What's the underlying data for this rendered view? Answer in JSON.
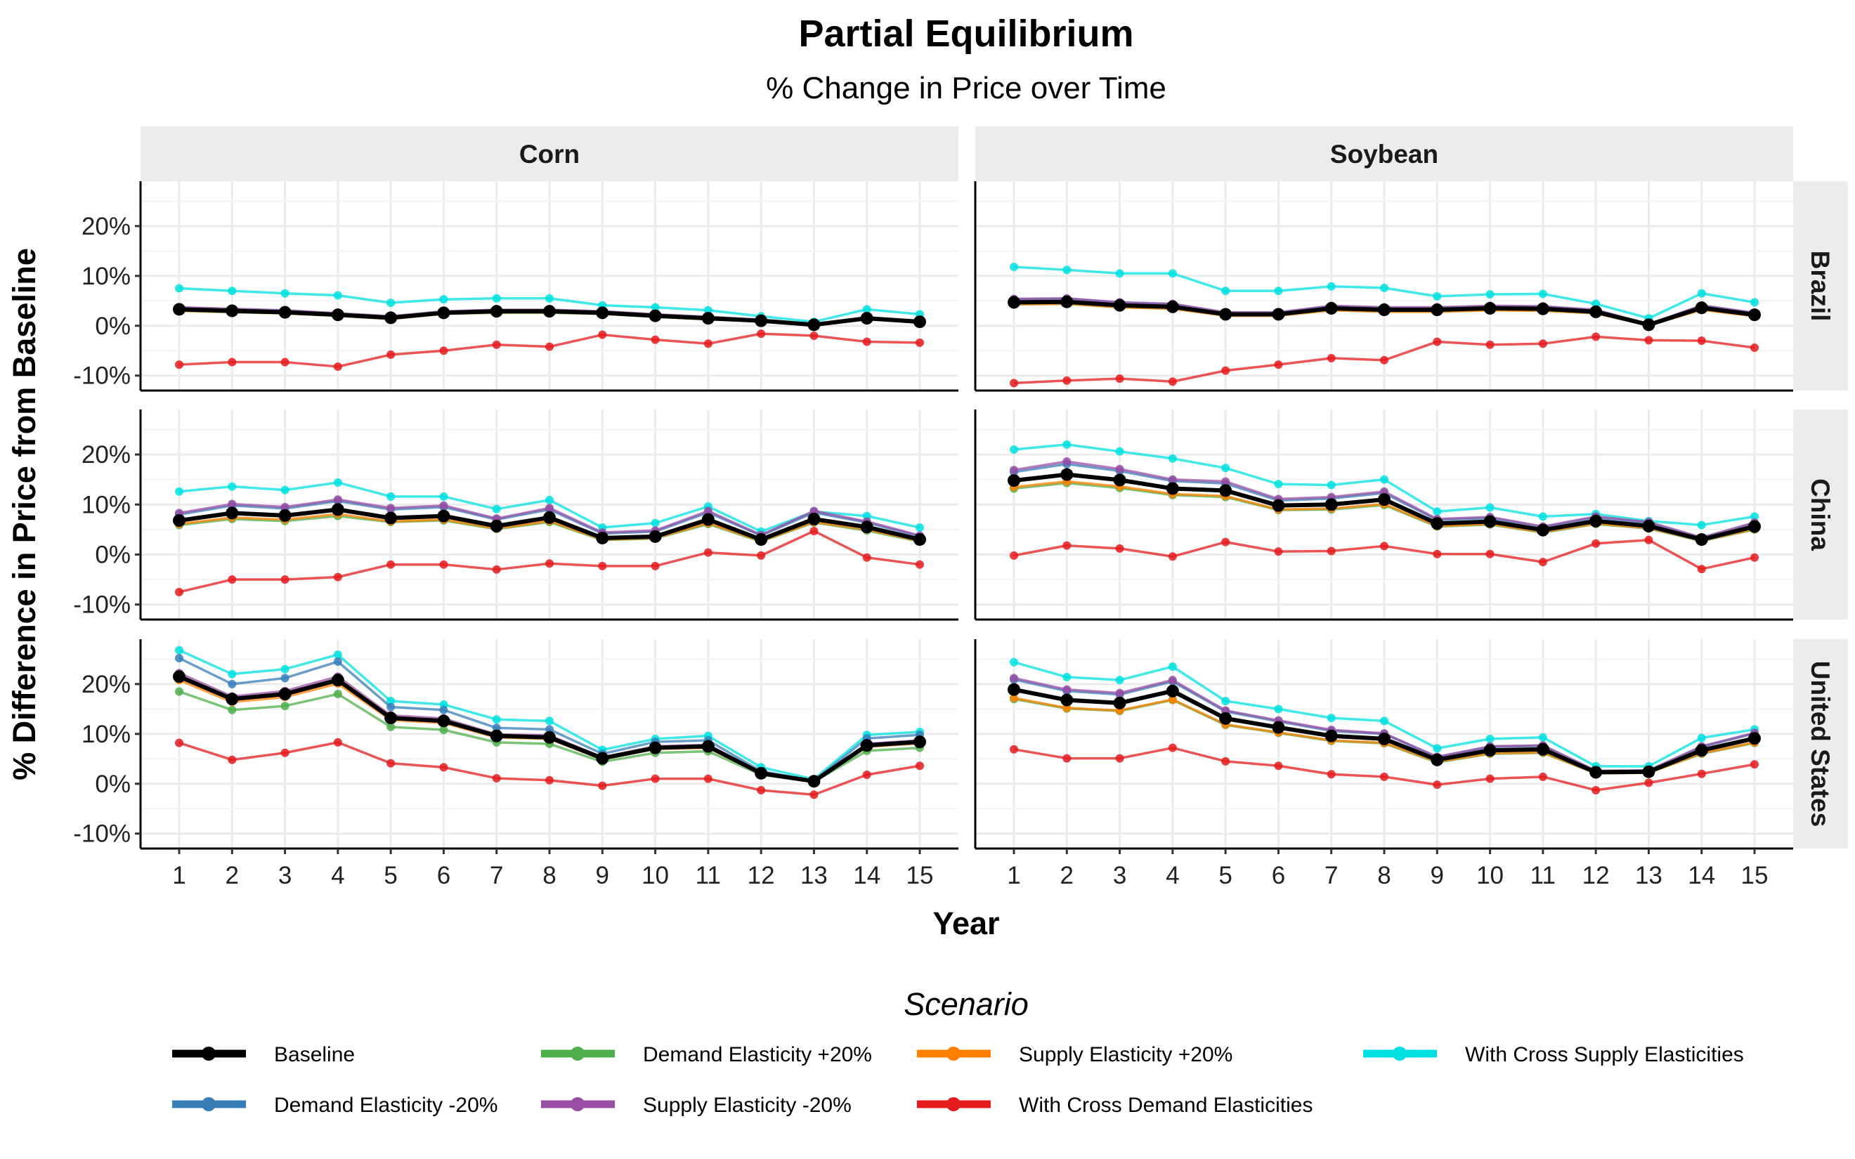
{
  "title": "Partial Equilibrium",
  "subtitle": "% Change in Price over Time",
  "chart_data": {
    "type": "line",
    "title": "Partial Equilibrium",
    "subtitle": "% Change in Price over Time",
    "xlabel": "Year",
    "ylabel": "% Difference in Price from Baseline",
    "x": [
      1,
      2,
      3,
      4,
      5,
      6,
      7,
      8,
      9,
      10,
      11,
      12,
      13,
      14,
      15
    ],
    "x_ticks": [
      "1",
      "2",
      "3",
      "4",
      "5",
      "6",
      "7",
      "8",
      "9",
      "10",
      "11",
      "12",
      "13",
      "14",
      "15"
    ],
    "ylim": [
      -13,
      29
    ],
    "y_ticks": [
      -10,
      0,
      10,
      20
    ],
    "y_tick_labels": [
      "-10%",
      "0%",
      "10%",
      "20%"
    ],
    "columns": [
      "Corn",
      "Soybean"
    ],
    "rows": [
      "Brazil",
      "China",
      "United States"
    ],
    "grid": true,
    "legend_title": "Scenario",
    "legend_position": "bottom",
    "legend": [
      {
        "name": "Baseline",
        "color": "#000000"
      },
      {
        "name": "Demand Elasticity -20%",
        "color": "#377eb8"
      },
      {
        "name": "Demand Elasticity +20%",
        "color": "#4daf4a"
      },
      {
        "name": "Supply Elasticity -20%",
        "color": "#984ea3"
      },
      {
        "name": "Supply Elasticity +20%",
        "color": "#ff7f00"
      },
      {
        "name": "With Cross Demand Elasticities",
        "color": "#e41a1c"
      },
      {
        "name": "With Cross Supply Elasticities",
        "color": "#00e0e0"
      }
    ],
    "panels": [
      {
        "column": "Corn",
        "row": "Brazil",
        "series": [
          {
            "name": "Baseline",
            "values": [
              3.3,
              3.0,
              2.7,
              2.2,
              1.6,
              2.6,
              2.9,
              2.9,
              2.6,
              2.0,
              1.5,
              1.0,
              0.2,
              1.5,
              0.8
            ]
          },
          {
            "name": "Demand Elasticity -20%",
            "values": [
              3.6,
              3.3,
              3.0,
              2.4,
              1.8,
              2.8,
              3.1,
              3.1,
              2.8,
              2.2,
              1.7,
              1.1,
              0.3,
              1.6,
              0.9
            ]
          },
          {
            "name": "Demand Elasticity +20%",
            "values": [
              3.0,
              2.7,
              2.5,
              2.0,
              1.4,
              2.4,
              2.6,
              2.6,
              2.4,
              1.8,
              1.3,
              0.9,
              0.1,
              1.3,
              0.7
            ]
          },
          {
            "name": "Supply Elasticity -20%",
            "values": [
              3.7,
              3.4,
              3.1,
              2.5,
              1.9,
              2.9,
              3.2,
              3.2,
              2.9,
              2.3,
              1.8,
              1.2,
              0.3,
              1.7,
              1.0
            ]
          },
          {
            "name": "Supply Elasticity +20%",
            "values": [
              3.0,
              2.8,
              2.5,
              2.0,
              1.4,
              2.4,
              2.7,
              2.7,
              2.4,
              1.8,
              1.3,
              0.9,
              0.1,
              1.3,
              0.7
            ]
          },
          {
            "name": "With Cross Demand Elasticities",
            "values": [
              -7.8,
              -7.3,
              -7.3,
              -8.2,
              -5.8,
              -5.0,
              -3.8,
              -4.2,
              -1.8,
              -2.8,
              -3.6,
              -1.6,
              -2.0,
              -3.2,
              -3.4
            ]
          },
          {
            "name": "With Cross Supply Elasticities",
            "values": [
              7.5,
              7.0,
              6.5,
              6.1,
              4.6,
              5.3,
              5.5,
              5.5,
              4.1,
              3.7,
              3.1,
              1.9,
              0.8,
              3.3,
              2.3
            ]
          }
        ]
      },
      {
        "column": "Soybean",
        "row": "Brazil",
        "series": [
          {
            "name": "Baseline",
            "values": [
              4.7,
              4.8,
              4.1,
              3.8,
              2.3,
              2.3,
              3.5,
              3.2,
              3.2,
              3.5,
              3.4,
              2.8,
              0.2,
              3.6,
              2.2
            ]
          },
          {
            "name": "Demand Elasticity -20%",
            "values": [
              5.3,
              5.4,
              4.6,
              4.3,
              2.6,
              2.6,
              3.9,
              3.6,
              3.6,
              3.9,
              3.8,
              3.1,
              0.3,
              4.0,
              2.5
            ]
          },
          {
            "name": "Demand Elasticity +20%",
            "values": [
              4.3,
              4.4,
              3.7,
              3.5,
              2.1,
              2.1,
              3.2,
              2.9,
              2.9,
              3.2,
              3.1,
              2.5,
              0.1,
              3.3,
              2.0
            ]
          },
          {
            "name": "Supply Elasticity -20%",
            "values": [
              5.4,
              5.5,
              4.7,
              4.4,
              2.7,
              2.7,
              4.0,
              3.7,
              3.7,
              4.0,
              3.9,
              3.2,
              0.3,
              4.1,
              2.6
            ]
          },
          {
            "name": "Supply Elasticity +20%",
            "values": [
              4.3,
              4.4,
              3.7,
              3.4,
              2.0,
              2.0,
              3.1,
              2.8,
              2.8,
              3.1,
              3.0,
              2.5,
              0.1,
              3.2,
              1.9
            ]
          },
          {
            "name": "With Cross Demand Elasticities",
            "values": [
              -11.5,
              -11.0,
              -10.6,
              -11.2,
              -9.0,
              -7.8,
              -6.5,
              -6.9,
              -3.2,
              -3.8,
              -3.6,
              -2.2,
              -2.9,
              -3.0,
              -4.4
            ]
          },
          {
            "name": "With Cross Supply Elasticities",
            "values": [
              11.8,
              11.2,
              10.5,
              10.5,
              7.0,
              7.0,
              7.9,
              7.6,
              5.9,
              6.3,
              6.4,
              4.4,
              1.5,
              6.5,
              4.7
            ]
          }
        ]
      },
      {
        "column": "Corn",
        "row": "China",
        "series": [
          {
            "name": "Baseline",
            "values": [
              6.8,
              8.3,
              7.8,
              9.0,
              7.3,
              7.7,
              5.7,
              7.4,
              3.3,
              3.6,
              7.0,
              3.0,
              7.1,
              5.5,
              3.0
            ]
          },
          {
            "name": "Demand Elasticity -20%",
            "values": [
              8.0,
              9.8,
              9.2,
              10.7,
              9.0,
              9.5,
              7.0,
              9.0,
              4.2,
              4.6,
              8.4,
              3.8,
              8.4,
              6.4,
              3.6
            ]
          },
          {
            "name": "Demand Elasticity +20%",
            "values": [
              5.9,
              7.1,
              6.7,
              7.7,
              6.5,
              6.8,
              5.1,
              6.5,
              2.9,
              3.2,
              6.1,
              2.6,
              6.4,
              4.8,
              2.6
            ]
          },
          {
            "name": "Supply Elasticity -20%",
            "values": [
              8.3,
              10.1,
              9.5,
              11.0,
              9.3,
              9.8,
              7.2,
              9.3,
              4.4,
              4.8,
              8.7,
              3.9,
              8.7,
              6.6,
              3.8
            ]
          },
          {
            "name": "Supply Elasticity +20%",
            "values": [
              6.1,
              7.4,
              7.0,
              8.1,
              6.6,
              7.0,
              5.2,
              6.7,
              3.0,
              3.3,
              6.3,
              2.7,
              6.5,
              5.0,
              2.7
            ]
          },
          {
            "name": "With Cross Demand Elasticities",
            "values": [
              -7.5,
              -5.0,
              -5.0,
              -4.5,
              -2.0,
              -2.0,
              -3.0,
              -1.8,
              -2.3,
              -2.3,
              0.4,
              -0.2,
              4.7,
              -0.6,
              -2.0
            ]
          },
          {
            "name": "With Cross Supply Elasticities",
            "values": [
              12.6,
              13.6,
              12.9,
              14.4,
              11.6,
              11.6,
              9.1,
              10.9,
              5.4,
              6.3,
              9.6,
              4.6,
              8.6,
              7.7,
              5.4
            ]
          }
        ]
      },
      {
        "column": "Soybean",
        "row": "China",
        "series": [
          {
            "name": "Baseline",
            "values": [
              14.8,
              16.0,
              14.9,
              13.2,
              12.8,
              9.8,
              10.0,
              11.0,
              6.2,
              6.6,
              4.9,
              6.7,
              5.7,
              3.0,
              5.6
            ]
          },
          {
            "name": "Demand Elasticity -20%",
            "values": [
              16.5,
              18.1,
              16.7,
              14.7,
              14.2,
              10.8,
              11.2,
              12.3,
              6.9,
              7.3,
              5.4,
              7.4,
              6.3,
              3.3,
              6.2
            ]
          },
          {
            "name": "Demand Elasticity +20%",
            "values": [
              13.2,
              14.3,
              13.3,
              11.9,
              11.5,
              8.9,
              9.0,
              9.9,
              5.6,
              6.0,
              4.4,
              6.1,
              5.2,
              2.7,
              5.0
            ]
          },
          {
            "name": "Supply Elasticity -20%",
            "values": [
              16.9,
              18.6,
              17.1,
              15.0,
              14.6,
              11.1,
              11.5,
              12.6,
              7.1,
              7.5,
              5.6,
              7.6,
              6.5,
              3.4,
              6.4
            ]
          },
          {
            "name": "Supply Elasticity +20%",
            "values": [
              13.5,
              14.6,
              13.6,
              12.1,
              11.7,
              9.0,
              9.2,
              10.1,
              5.7,
              6.1,
              4.5,
              6.2,
              5.3,
              2.8,
              5.1
            ]
          },
          {
            "name": "With Cross Demand Elasticities",
            "values": [
              -0.2,
              1.8,
              1.2,
              -0.4,
              2.5,
              0.6,
              0.7,
              1.7,
              0.1,
              0.1,
              -1.5,
              2.2,
              2.9,
              -2.9,
              -0.6
            ]
          },
          {
            "name": "With Cross Supply Elasticities",
            "values": [
              21.0,
              22.0,
              20.6,
              19.2,
              17.3,
              14.1,
              13.9,
              15.0,
              8.6,
              9.4,
              7.6,
              8.1,
              6.7,
              5.9,
              7.6
            ]
          }
        ]
      },
      {
        "column": "Corn",
        "row": "United States",
        "series": [
          {
            "name": "Baseline",
            "values": [
              21.5,
              17.0,
              18.0,
              20.8,
              13.2,
              12.6,
              9.6,
              9.3,
              5.1,
              7.2,
              7.5,
              2.1,
              0.5,
              7.7,
              8.4
            ]
          },
          {
            "name": "Demand Elasticity -20%",
            "values": [
              25.2,
              20.0,
              21.2,
              24.5,
              15.4,
              14.8,
              11.2,
              10.9,
              6.0,
              8.4,
              8.7,
              2.5,
              0.6,
              9.1,
              9.8
            ]
          },
          {
            "name": "Demand Elasticity +20%",
            "values": [
              18.5,
              14.8,
              15.6,
              18.0,
              11.4,
              10.8,
              8.3,
              8.0,
              4.4,
              6.2,
              6.5,
              1.8,
              0.4,
              6.6,
              7.2
            ]
          },
          {
            "name": "Supply Elasticity -20%",
            "values": [
              22.2,
              17.5,
              18.6,
              21.5,
              13.7,
              13.1,
              9.9,
              9.7,
              5.3,
              7.5,
              7.8,
              2.2,
              0.5,
              8.0,
              8.7
            ]
          },
          {
            "name": "Supply Elasticity +20%",
            "values": [
              20.8,
              16.4,
              17.4,
              20.1,
              12.8,
              12.2,
              9.3,
              9.0,
              4.9,
              7.0,
              7.2,
              2.0,
              0.5,
              7.4,
              8.1
            ]
          },
          {
            "name": "With Cross Demand Elasticities",
            "values": [
              8.2,
              4.8,
              6.2,
              8.3,
              4.1,
              3.3,
              1.1,
              0.7,
              -0.4,
              1.0,
              1.0,
              -1.3,
              -2.2,
              1.8,
              3.6
            ]
          },
          {
            "name": "With Cross Supply Elasticities",
            "values": [
              26.8,
              22.0,
              23.0,
              25.9,
              16.6,
              15.9,
              12.9,
              12.6,
              6.8,
              9.0,
              9.6,
              3.3,
              0.9,
              9.8,
              10.4
            ]
          }
        ]
      },
      {
        "column": "Soybean",
        "row": "United States",
        "series": [
          {
            "name": "Baseline",
            "values": [
              18.9,
              16.8,
              16.2,
              18.6,
              13.1,
              11.3,
              9.6,
              9.0,
              4.8,
              6.7,
              6.9,
              2.3,
              2.4,
              6.7,
              9.1
            ]
          },
          {
            "name": "Demand Elasticity -20%",
            "values": [
              20.9,
              18.6,
              17.9,
              20.5,
              14.5,
              12.5,
              10.6,
              10.0,
              5.3,
              7.4,
              7.6,
              2.5,
              2.6,
              7.4,
              10.1
            ]
          },
          {
            "name": "Demand Elasticity +20%",
            "values": [
              17.0,
              15.1,
              14.6,
              16.8,
              11.8,
              10.2,
              8.6,
              8.1,
              4.3,
              6.0,
              6.2,
              2.1,
              2.2,
              6.0,
              8.2
            ]
          },
          {
            "name": "Supply Elasticity -20%",
            "values": [
              21.2,
              18.9,
              18.2,
              20.8,
              14.7,
              12.7,
              10.8,
              10.1,
              5.4,
              7.5,
              7.7,
              2.6,
              2.7,
              7.5,
              10.2
            ]
          },
          {
            "name": "Supply Elasticity +20%",
            "values": [
              17.2,
              15.2,
              14.7,
              16.9,
              11.9,
              10.3,
              8.7,
              8.2,
              4.4,
              6.1,
              6.3,
              2.1,
              2.2,
              6.1,
              8.3
            ]
          },
          {
            "name": "With Cross Demand Elasticities",
            "values": [
              6.9,
              5.1,
              5.1,
              7.2,
              4.5,
              3.6,
              1.9,
              1.4,
              -0.2,
              1.0,
              1.4,
              -1.3,
              0.2,
              2.0,
              3.9
            ]
          },
          {
            "name": "With Cross Supply Elasticities",
            "values": [
              24.4,
              21.4,
              20.8,
              23.5,
              16.6,
              15.0,
              13.2,
              12.6,
              7.1,
              9.0,
              9.3,
              3.5,
              3.5,
              9.2,
              10.9
            ]
          }
        ]
      }
    ]
  }
}
